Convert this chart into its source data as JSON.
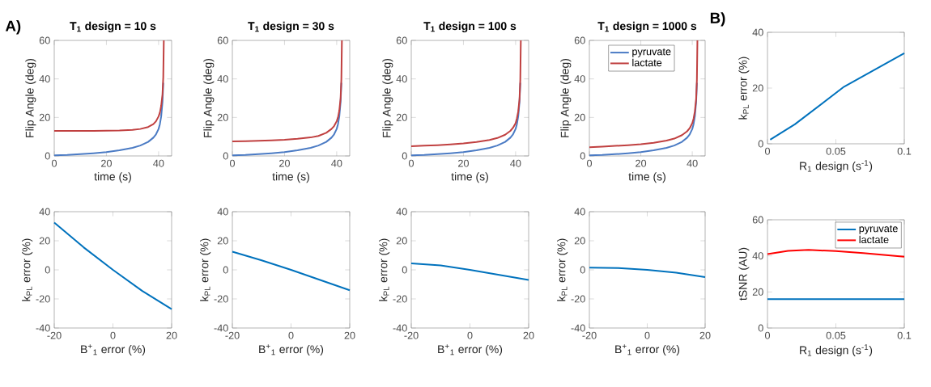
{
  "chart_data": [
    {
      "type": "line",
      "title": "T$_{1}$ design = 10 s",
      "xlabel": "time (s)",
      "ylabel": "Flip Angle (deg)",
      "annotations": [
        "A)"
      ],
      "xlim": [
        0,
        45
      ],
      "ylim": [
        0,
        60
      ],
      "xticks": [
        0,
        20,
        40
      ],
      "yticks": [
        0,
        20,
        40,
        60
      ],
      "x": [
        0,
        5,
        10,
        15,
        20,
        25,
        30,
        33,
        36,
        38,
        39,
        40,
        40.5,
        41,
        41.5,
        41.8,
        42
      ],
      "series": [
        {
          "color": "#4b7bc4",
          "values": [
            0.3,
            0.5,
            0.9,
            1.4,
            2,
            2.9,
            4.2,
            5.4,
            7.3,
            9.5,
            11.2,
            14,
            16.5,
            20.5,
            28,
            38,
            null
          ]
        },
        {
          "color": "#c04040",
          "values": [
            13,
            13,
            13,
            13,
            13.1,
            13.2,
            13.5,
            14,
            15,
            16.5,
            18,
            20.5,
            22.5,
            26,
            32,
            41,
            60
          ]
        }
      ]
    },
    {
      "type": "line",
      "title": "T$_{1}$ design = 30 s",
      "xlabel": "time (s)",
      "ylabel": "Flip Angle (deg)",
      "xlim": [
        0,
        45
      ],
      "ylim": [
        0,
        60
      ],
      "xticks": [
        0,
        20,
        40
      ],
      "yticks": [
        0,
        20,
        40,
        60
      ],
      "x": [
        0,
        5,
        10,
        15,
        20,
        25,
        30,
        33,
        36,
        38,
        39,
        40,
        40.5,
        41,
        41.5,
        41.8,
        42
      ],
      "series": [
        {
          "color": "#4b7bc4",
          "values": [
            0.3,
            0.5,
            0.9,
            1.4,
            2,
            2.9,
            4.2,
            5.4,
            7.3,
            9.5,
            11.2,
            14,
            16.5,
            20.5,
            28,
            38,
            null
          ]
        },
        {
          "color": "#c04040",
          "values": [
            7.5,
            7.7,
            7.9,
            8.1,
            8.4,
            8.9,
            9.6,
            10.4,
            12,
            14,
            15.5,
            18,
            20,
            23.5,
            30,
            40,
            60
          ]
        }
      ]
    },
    {
      "type": "line",
      "title": "T$_{1}$ design = 100 s",
      "xlabel": "time (s)",
      "ylabel": "Flip Angle (deg)",
      "xlim": [
        0,
        45
      ],
      "ylim": [
        0,
        60
      ],
      "xticks": [
        0,
        20,
        40
      ],
      "yticks": [
        0,
        20,
        40,
        60
      ],
      "x": [
        0,
        5,
        10,
        15,
        20,
        25,
        30,
        33,
        36,
        38,
        39,
        40,
        40.5,
        41,
        41.5,
        41.8,
        42
      ],
      "series": [
        {
          "color": "#4b7bc4",
          "values": [
            0.3,
            0.5,
            0.9,
            1.4,
            2,
            2.9,
            4.2,
            5.4,
            7.3,
            9.5,
            11.2,
            14,
            16.5,
            20.5,
            28,
            38,
            null
          ]
        },
        {
          "color": "#c04040",
          "values": [
            5,
            5.3,
            5.6,
            6,
            6.5,
            7.2,
            8.3,
            9.3,
            11,
            13,
            14.6,
            17,
            19.5,
            23,
            29.5,
            39.5,
            60
          ]
        }
      ]
    },
    {
      "type": "line",
      "title": "T$_{1}$ design = 1000 s",
      "xlabel": "time (s)",
      "ylabel": "Flip Angle (deg)",
      "xlim": [
        0,
        45
      ],
      "ylim": [
        0,
        60
      ],
      "xticks": [
        0,
        20,
        40
      ],
      "yticks": [
        0,
        20,
        40,
        60
      ],
      "legend": "top",
      "x": [
        0,
        5,
        10,
        15,
        20,
        25,
        30,
        33,
        36,
        38,
        39,
        40,
        40.5,
        41,
        41.5,
        41.8,
        42
      ],
      "series": [
        {
          "name": "pyruvate",
          "color": "#4b7bc4",
          "values": [
            0.3,
            0.5,
            0.9,
            1.4,
            2,
            2.9,
            4.2,
            5.4,
            7.3,
            9.5,
            11.2,
            14,
            16.5,
            20.5,
            28,
            38,
            null
          ]
        },
        {
          "name": "lactate",
          "color": "#c04040",
          "values": [
            4.5,
            4.8,
            5.2,
            5.6,
            6.1,
            6.8,
            8,
            9,
            10.8,
            12.8,
            14.4,
            17,
            19.3,
            23,
            29.5,
            39.5,
            60
          ]
        }
      ]
    },
    {
      "type": "line",
      "xlabel": "R$_{1}$ design (s$^{-1}$)",
      "ylabel": "k$_{PL}$ error (%)",
      "annotations": [
        "B)"
      ],
      "xlim": [
        0,
        0.1
      ],
      "ylim": [
        0,
        40
      ],
      "xticks": [
        0,
        0.05,
        0.1
      ],
      "yticks": [
        0,
        20,
        40
      ],
      "x": [
        0.002,
        0.02,
        0.056,
        0.1
      ],
      "series": [
        {
          "color": "#0072bd",
          "values": [
            1.5,
            7,
            20.5,
            32.5
          ]
        }
      ]
    },
    {
      "type": "line",
      "xlabel": "B$^{+}$$_{1}$ error (%)",
      "ylabel": "k$_{PL}$ error (%)",
      "xlim": [
        -20,
        20
      ],
      "ylim": [
        -40,
        40
      ],
      "xticks": [
        -20,
        0,
        20
      ],
      "yticks": [
        -40,
        -20,
        0,
        20,
        40
      ],
      "x": [
        -20,
        -10,
        0,
        10,
        20
      ],
      "series": [
        {
          "color": "#0072bd",
          "values": [
            32.5,
            15.5,
            0,
            -14.5,
            -27
          ]
        }
      ]
    },
    {
      "type": "line",
      "xlabel": "B$^{+}$$_{1}$ error (%)",
      "ylabel": "k$_{PL}$ error (%)",
      "xlim": [
        -20,
        20
      ],
      "ylim": [
        -40,
        40
      ],
      "xticks": [
        -20,
        0,
        20
      ],
      "yticks": [
        -40,
        -20,
        0,
        20,
        40
      ],
      "x": [
        -20,
        -10,
        0,
        10,
        20
      ],
      "series": [
        {
          "color": "#0072bd",
          "values": [
            12.5,
            6.5,
            0,
            -7,
            -14
          ]
        }
      ]
    },
    {
      "type": "line",
      "xlabel": "B$^{+}$$_{1}$ error (%)",
      "ylabel": "k$_{PL}$ error (%)",
      "xlim": [
        -20,
        20
      ],
      "ylim": [
        -40,
        40
      ],
      "xticks": [
        -20,
        0,
        20
      ],
      "yticks": [
        -40,
        -20,
        0,
        20,
        40
      ],
      "x": [
        -20,
        -10,
        0,
        10,
        20
      ],
      "series": [
        {
          "color": "#0072bd",
          "values": [
            4.5,
            3,
            0,
            -3.5,
            -7
          ]
        }
      ]
    },
    {
      "type": "line",
      "xlabel": "B$^{+}$$_{1}$ error (%)",
      "ylabel": "k$_{PL}$ error (%)",
      "xlim": [
        -20,
        20
      ],
      "ylim": [
        -40,
        40
      ],
      "xticks": [
        -20,
        0,
        20
      ],
      "yticks": [
        -40,
        -20,
        0,
        20,
        40
      ],
      "x": [
        -20,
        -10,
        0,
        10,
        20
      ],
      "series": [
        {
          "color": "#0072bd",
          "values": [
            1.5,
            1.3,
            0,
            -2,
            -5
          ]
        }
      ]
    },
    {
      "type": "line",
      "xlabel": "R$_{1}$ design (s$^{-1}$)",
      "ylabel": "tSNR (AU)",
      "xlim": [
        0,
        0.1
      ],
      "ylim": [
        0,
        60
      ],
      "xticks": [
        0,
        0.05,
        0.1
      ],
      "yticks": [
        0,
        20,
        40,
        60
      ],
      "legend": "top right",
      "x": [
        0,
        0.015,
        0.03,
        0.05,
        0.07,
        0.1
      ],
      "series": [
        {
          "name": "pyruvate",
          "color": "#0072bd",
          "values": [
            16,
            16,
            16,
            16,
            16,
            16
          ]
        },
        {
          "name": "lactate",
          "color": "#ff0000",
          "values": [
            41,
            42.8,
            43.3,
            42.6,
            41.5,
            39.5
          ]
        }
      ]
    }
  ]
}
